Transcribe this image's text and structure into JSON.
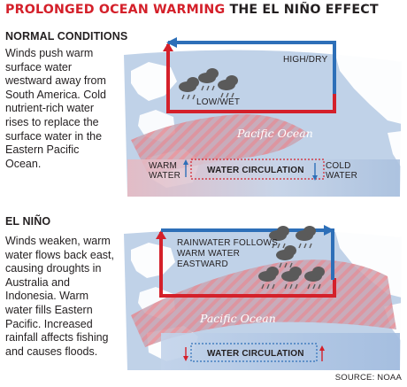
{
  "header": {
    "title_red": "PROLONGED OCEAN WARMING",
    "title_black": "THE EL NIÑO EFFECT"
  },
  "normal": {
    "heading": "NORMAL CONDITIONS",
    "description": "Winds push warm surface water westward away from South America. Cold nutrient-rich water rises to replace the surface water in the Eastern Pacific Ocean.",
    "label_high": "HIGH/DRY",
    "label_low": "LOW/WET",
    "ocean_label": "Pacific Ocean",
    "warm_line1": "WARM",
    "warm_line2": "WATER",
    "cold_line1": "COLD",
    "cold_line2": "WATER",
    "circulation": "WATER CIRCULATION"
  },
  "elnino": {
    "heading": "EL NIÑO",
    "description": "Winds weaken, warm water flows back east, causing droughts in Australia and Indonesia. Warm water fills Eastern Pacific. Increased rainfall affects fishing and causes floods.",
    "rain_line1": "RAINWATER FOLLOWS",
    "rain_line2": "WARM WATER",
    "rain_line3": "EASTWARD",
    "ocean_label": "Pacific Ocean",
    "circulation": "WATER CIRCULATION"
  },
  "footer": {
    "source": "SOURCE: NOAA"
  },
  "colors": {
    "red": "#d4202a",
    "blue": "#2d6fb8",
    "ocean": "#b9cde4",
    "land": "#ffffff",
    "deep": "#7fa3d3"
  }
}
